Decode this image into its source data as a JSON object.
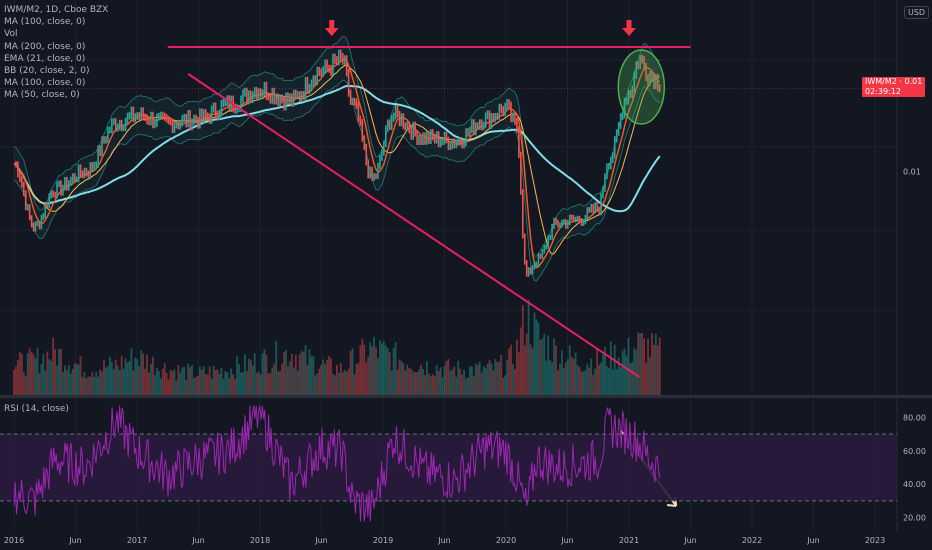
{
  "header": {
    "symbol_line": "IWM/M2, 1D, Cboe BZX",
    "indicators": [
      "MA (100, close, 0)",
      "Vol",
      "MA (200, close, 0)",
      "EMA (21, close, 0)",
      "BB (20, close, 2, 0)",
      "MA (100, close, 0)",
      "MA (50, close, 0)"
    ],
    "currency": "USD"
  },
  "price_tag": {
    "text": "IWM/M2 · 0.01",
    "countdown": "02:39:12"
  },
  "rsi_panel": {
    "label": "RSI (14, close)"
  },
  "colors": {
    "background": "#131722",
    "grid": "#1e222d",
    "candle_up": "#26a69a",
    "candle_down": "#ef5350",
    "ma200": "#80deea",
    "ema21": "#ff5722",
    "ma50": "#ffb74d",
    "bollinger": "#26a69a",
    "trendline": "#e91e63",
    "arrow": "#f23645",
    "rsi_line": "#9c27b0",
    "rsi_band": "#2a1a3d",
    "highlight_circle": "#4caf50",
    "rsi_arrow": "#f5deb3"
  },
  "chart_data": [
    {
      "type": "line",
      "title": "IWM/M2, 1D, Cboe BZX",
      "x_tick_labels": [
        "2016",
        "Jun",
        "2017",
        "Jun",
        "2018",
        "Jun",
        "2019",
        "Jun",
        "2020",
        "Jun",
        "2021",
        "Jun",
        "2022",
        "Jun",
        "2023"
      ],
      "y_tick_labels": [
        "0.01"
      ],
      "y_unit": "USD",
      "series": [
        {
          "name": "IWM/M2",
          "x": [
            "2016-01",
            "2016-03",
            "2016-05",
            "2016-08",
            "2016-11",
            "2017-01",
            "2017-04",
            "2017-07",
            "2017-10",
            "2018-01",
            "2018-04",
            "2018-07",
            "2018-09",
            "2018-10",
            "2018-12",
            "2019-02",
            "2019-05",
            "2019-08",
            "2019-11",
            "2020-01",
            "2020-02",
            "2020-03",
            "2020-04",
            "2020-06",
            "2020-08",
            "2020-10",
            "2020-11",
            "2021-01",
            "2021-02",
            "2021-03",
            "2021-04"
          ],
          "values": [
            0.0102,
            0.0085,
            0.0095,
            0.01,
            0.0113,
            0.0115,
            0.0113,
            0.0114,
            0.0118,
            0.0122,
            0.0119,
            0.0127,
            0.013,
            0.0118,
            0.0098,
            0.0115,
            0.0109,
            0.0108,
            0.0114,
            0.0117,
            0.0112,
            0.0072,
            0.0076,
            0.0086,
            0.0087,
            0.009,
            0.0103,
            0.0121,
            0.013,
            0.0126,
            0.0124
          ]
        }
      ],
      "volume": {
        "relative_values": [
          0.35,
          0.4,
          0.5,
          0.3,
          0.35,
          0.45,
          0.3,
          0.25,
          0.3,
          0.4,
          0.5,
          0.35,
          0.3,
          0.4,
          0.55,
          0.45,
          0.35,
          0.3,
          0.3,
          0.35,
          0.5,
          0.95,
          0.7,
          0.5,
          0.4,
          0.4,
          0.45,
          0.5,
          0.6,
          0.55,
          0.5
        ]
      },
      "annotations": [
        "horizontal resistance line at the 2018 and 2021 highs",
        "descending trendline from 2017 high to 2021",
        "red down arrows above mid-2018 and early-2021 peaks",
        "green circle highlighting the 2021 top"
      ]
    },
    {
      "type": "line",
      "title": "RSI (14, close)",
      "y_tick_labels": [
        "80.00",
        "60.00",
        "40.00",
        "20.00"
      ],
      "ylim": [
        15,
        88
      ],
      "bands": [
        30,
        70
      ],
      "series": [
        {
          "name": "RSI (14, close)",
          "x": [
            "2016-01",
            "2016-03",
            "2016-05",
            "2016-08",
            "2016-11",
            "2017-01",
            "2017-04",
            "2017-07",
            "2017-10",
            "2018-01",
            "2018-04",
            "2018-07",
            "2018-09",
            "2018-10",
            "2018-12",
            "2019-02",
            "2019-05",
            "2019-08",
            "2019-11",
            "2020-01",
            "2020-02",
            "2020-03",
            "2020-04",
            "2020-06",
            "2020-08",
            "2020-10",
            "2020-11",
            "2021-01",
            "2021-02",
            "2021-03",
            "2021-04"
          ],
          "values": [
            35,
            30,
            55,
            50,
            78,
            60,
            45,
            55,
            60,
            82,
            40,
            62,
            60,
            30,
            25,
            68,
            48,
            42,
            62,
            60,
            45,
            25,
            55,
            50,
            52,
            55,
            75,
            70,
            65,
            55,
            50
          ]
        }
      ]
    }
  ]
}
